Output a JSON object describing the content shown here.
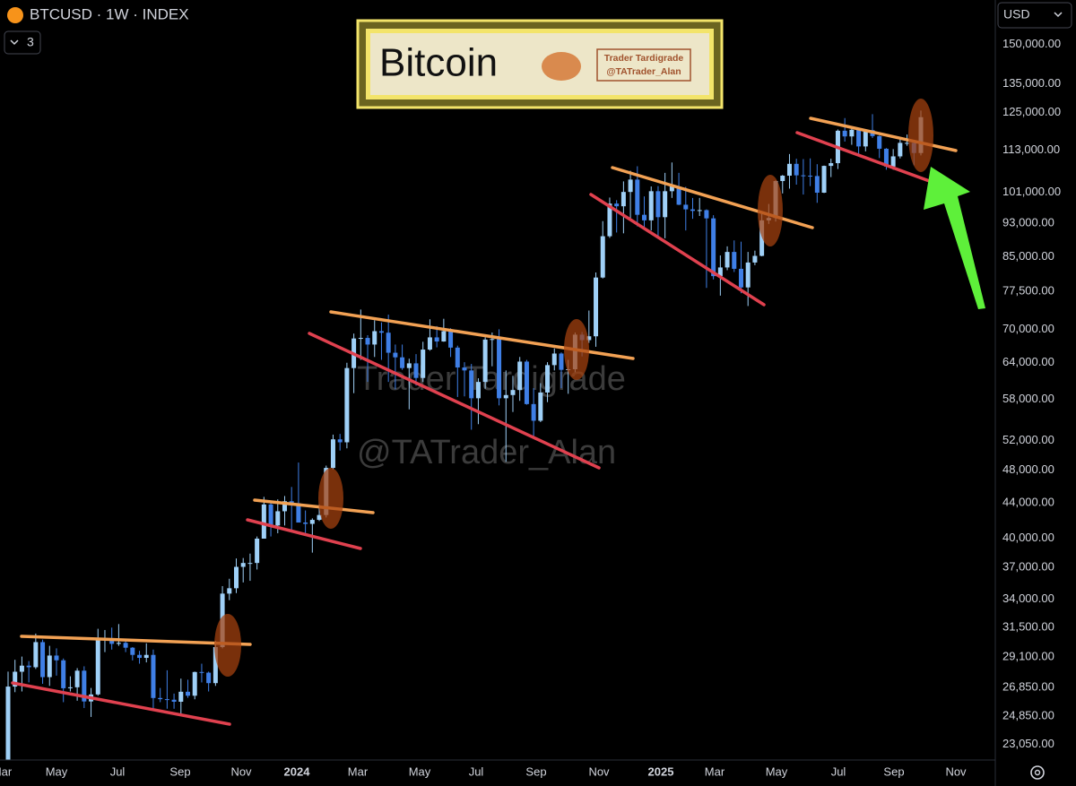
{
  "header": {
    "symbol": "BTCUSD · 1W · INDEX",
    "indicator_count": 3,
    "currency": "USD"
  },
  "logo": {
    "title": "Bitcoin",
    "author": "Trader Tardigrade",
    "handle": "@TATrader_Alan"
  },
  "watermark": {
    "author": "Trader Tardigrade",
    "handle": "@TATrader_Alan"
  },
  "chart_data": {
    "type": "candlestick",
    "open": [
      20600,
      26900,
      27990,
      28450,
      28330,
      30300,
      27590,
      29230,
      28860,
      26780,
      26850,
      28070,
      25850,
      26340,
      30460,
      30600,
      30160,
      30240,
      29850,
      29280,
      29050,
      29280,
      26090,
      26010,
      25970,
      25830,
      26530,
      26250,
      27970,
      27920,
      27150,
      29900,
      34500,
      35000,
      37060,
      37450,
      37450,
      39970,
      43800,
      41400,
      43010,
      44180,
      43950,
      41730,
      41580,
      42030,
      42580,
      48300,
      52140,
      51730,
      63100,
      68300,
      68400,
      67200,
      69650,
      69360,
      65740,
      64940,
      63100,
      63900,
      61450,
      66300,
      68500,
      67750,
      69650,
      66650,
      63200,
      62700,
      58200,
      60800,
      68100,
      68200,
      58200,
      58700,
      59500,
      64200,
      57300,
      54800,
      59100,
      63600,
      65600,
      62800,
      62900,
      69000,
      68000,
      68700,
      80400,
      89800,
      98000,
      97300,
      101100,
      104500,
      95100,
      93700,
      101300,
      94500,
      101300,
      102600,
      97700,
      96500,
      96100,
      96300,
      94200,
      80700,
      82600,
      86100,
      82300,
      78300,
      83700,
      85200,
      93700,
      94300,
      104100,
      105600,
      109000,
      105700,
      105600,
      105500,
      100900,
      108400,
      109200,
      119100,
      117300,
      119400,
      114200,
      119300,
      117400,
      113500,
      108200,
      111200,
      115300,
      115300,
      112200
    ],
    "high": [
      28000,
      28900,
      29150,
      28800,
      31000,
      30500,
      30000,
      29800,
      29000,
      27650,
      28260,
      28400,
      26800,
      31400,
      31300,
      31500,
      31800,
      30400,
      29900,
      29600,
      30200,
      29700,
      26800,
      28100,
      26400,
      27480,
      27400,
      28000,
      28600,
      28000,
      30400,
      35200,
      35900,
      37900,
      37950,
      38400,
      40200,
      44700,
      44100,
      44400,
      44800,
      45900,
      49000,
      43100,
      42200,
      43800,
      48600,
      52800,
      52900,
      64000,
      69200,
      73800,
      68900,
      71700,
      71300,
      72800,
      67200,
      67200,
      64700,
      65500,
      67700,
      71900,
      70600,
      72000,
      70200,
      67000,
      64100,
      63800,
      61400,
      68500,
      69400,
      70000,
      62700,
      61800,
      65000,
      64500,
      59800,
      60600,
      64100,
      66500,
      65800,
      64500,
      69400,
      69500,
      73600,
      81500,
      93500,
      99600,
      98900,
      104000,
      107000,
      108300,
      99900,
      102600,
      102700,
      106400,
      109400,
      106400,
      102500,
      99500,
      99500,
      96500,
      95000,
      85300,
      87400,
      88800,
      88500,
      86100,
      86400,
      95700,
      97900,
      104300,
      105800,
      111900,
      110500,
      110400,
      110600,
      108900,
      108500,
      110500,
      119500,
      123200,
      120200,
      119800,
      119300,
      124500,
      117600,
      113700,
      113400,
      116700,
      117900,
      115400,
      125700
    ],
    "low": [
      19600,
      26500,
      26550,
      27200,
      28200,
      27100,
      26950,
      27700,
      25800,
      26550,
      25900,
      25400,
      24800,
      26250,
      29500,
      29700,
      30000,
      29500,
      28850,
      28600,
      28700,
      25200,
      25800,
      25350,
      25350,
      24900,
      26100,
      26000,
      27200,
      26550,
      26950,
      29800,
      33900,
      34550,
      35550,
      35700,
      36800,
      39970,
      40200,
      40550,
      41400,
      40800,
      41800,
      40300,
      38500,
      41900,
      42300,
      48100,
      50600,
      50900,
      59000,
      64500,
      60800,
      65000,
      64500,
      60800,
      59600,
      62800,
      56500,
      60200,
      60800,
      66100,
      66700,
      67700,
      65000,
      58400,
      58500,
      53500,
      54300,
      59700,
      63400,
      57100,
      49100,
      56100,
      57800,
      57200,
      52600,
      54600,
      57600,
      62700,
      59800,
      58900,
      62400,
      65100,
      67500,
      66800,
      80200,
      89400,
      90700,
      90500,
      94200,
      92200,
      91500,
      91200,
      89200,
      89300,
      99500,
      97600,
      91200,
      94100,
      94800,
      78200,
      80000,
      76600,
      82000,
      81600,
      77100,
      74500,
      83100,
      85100,
      92800,
      93400,
      100700,
      102000,
      103100,
      100400,
      102700,
      98200,
      100800,
      105200,
      107500,
      115700,
      114700,
      112000,
      112700,
      116800,
      110700,
      107300,
      107300,
      110600,
      114400,
      108600,
      111500
    ],
    "close": [
      26900,
      27990,
      28450,
      28330,
      30300,
      27590,
      29230,
      28860,
      26780,
      26850,
      28070,
      25850,
      26340,
      30460,
      30600,
      30160,
      30240,
      29850,
      29280,
      29050,
      29280,
      26090,
      26010,
      25970,
      25830,
      26530,
      26250,
      27970,
      27920,
      27150,
      29900,
      34500,
      35000,
      37060,
      37450,
      37450,
      39970,
      43800,
      41400,
      43010,
      44180,
      43950,
      41730,
      41580,
      42030,
      42580,
      48300,
      52140,
      51730,
      63100,
      68300,
      68400,
      67200,
      69650,
      69360,
      65740,
      64940,
      63100,
      63900,
      61450,
      66300,
      68500,
      67750,
      69650,
      66650,
      63200,
      62700,
      58200,
      60800,
      68100,
      68200,
      58200,
      58700,
      59500,
      64200,
      57300,
      54800,
      59100,
      63600,
      65600,
      62800,
      62900,
      69000,
      68000,
      68700,
      80400,
      89800,
      98000,
      97300,
      101100,
      104500,
      95100,
      93700,
      101300,
      94500,
      101300,
      102600,
      97700,
      96500,
      96100,
      96300,
      94200,
      80700,
      82600,
      86100,
      82300,
      78300,
      83700,
      85200,
      93700,
      94300,
      104100,
      105600,
      109000,
      105700,
      105600,
      105500,
      100900,
      108400,
      109200,
      119100,
      117300,
      119400,
      114200,
      119300,
      117400,
      113500,
      108200,
      111200,
      115300,
      115300,
      112200,
      123500
    ],
    "up_color": "#9fd0f7",
    "down_color": "#3f7fe6",
    "log_scale": true,
    "ylim": [
      22100,
      169000
    ],
    "yticks": [
      {
        "value": 150000,
        "label": "150,000.00"
      },
      {
        "value": 135000,
        "label": "135,000.00"
      },
      {
        "value": 125000,
        "label": "125,000.00"
      },
      {
        "value": 113000,
        "label": "113,000.00"
      },
      {
        "value": 101000,
        "label": "101,000.00"
      },
      {
        "value": 93000,
        "label": "93,000.00"
      },
      {
        "value": 85000,
        "label": "85,000.00"
      },
      {
        "value": 77500,
        "label": "77,500.00"
      },
      {
        "value": 70000,
        "label": "70,000.00"
      },
      {
        "value": 64000,
        "label": "64,000.00"
      },
      {
        "value": 58000,
        "label": "58,000.00"
      },
      {
        "value": 52000,
        "label": "52,000.00"
      },
      {
        "value": 48000,
        "label": "48,000.00"
      },
      {
        "value": 44000,
        "label": "44,000.00"
      },
      {
        "value": 40000,
        "label": "40,000.00"
      },
      {
        "value": 37000,
        "label": "37,000.00"
      },
      {
        "value": 34000,
        "label": "34,000.00"
      },
      {
        "value": 31500,
        "label": "31,500.00"
      },
      {
        "value": 29100,
        "label": "29,100.00"
      },
      {
        "value": 26850,
        "label": "26,850.00"
      },
      {
        "value": 24850,
        "label": "24,850.00"
      },
      {
        "value": 23050,
        "label": "23,050.00"
      }
    ],
    "x_labels": [
      "Mar",
      "May",
      "Jul",
      "Sep",
      "Nov",
      "2024",
      "Mar",
      "May",
      "Jul",
      "Sep",
      "Nov",
      "2025",
      "Mar",
      "May",
      "Jul",
      "Sep",
      "Nov"
    ]
  }
}
